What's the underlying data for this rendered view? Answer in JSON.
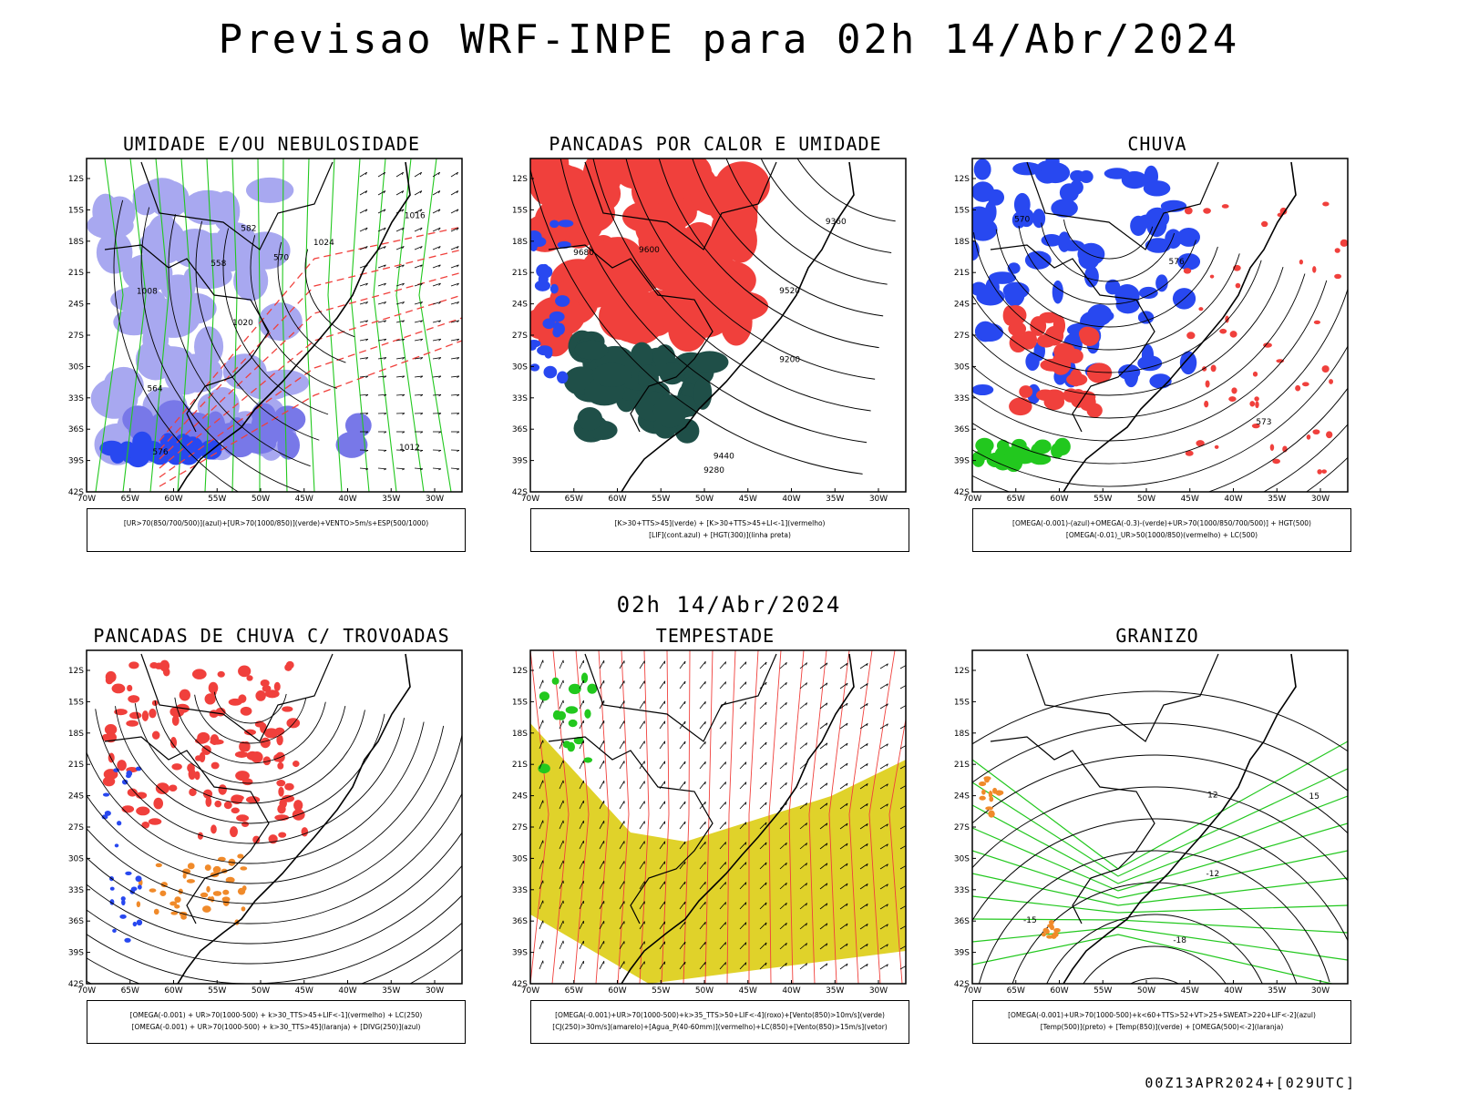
{
  "header": {
    "title": "Previsao WRF-INPE  para 02h 14/Abr/2024"
  },
  "middle": {
    "label": "02h 14/Abr/2024"
  },
  "footer": {
    "stamp": "00Z13APR2024+[029UTC]"
  },
  "axes": {
    "lat_ticks": [
      "12S",
      "15S",
      "18S",
      "21S",
      "24S",
      "27S",
      "30S",
      "33S",
      "36S",
      "39S",
      "42S"
    ],
    "lon_ticks": [
      "70W",
      "65W",
      "60W",
      "55W",
      "50W",
      "45W",
      "40W",
      "35W",
      "30W"
    ]
  },
  "panels": [
    {
      "id": "umidade",
      "title": "UMIDADE E/OU NEBULOSIDADE",
      "legend": [
        "[UR>70(850/700/500)](azul)+[UR>70(1000/850)](verde)+VENTO>5m/s+ESP(500/1000)"
      ]
    },
    {
      "id": "pancadas-calor",
      "title": "PANCADAS POR CALOR E UMIDADE",
      "legend": [
        "[K>30+TTS>45](verde) + [K>30+TTS>45+LI<-1](vermelho)",
        "[LIF](cont.azul) + [HGT(300)](linha preta)"
      ]
    },
    {
      "id": "chuva",
      "title": "CHUVA",
      "legend": [
        "[OMEGA(-0.001)-(azul)+OMEGA(-0.3)-(verde)+UR>70(1000/850/700/500)] + HGT(500)",
        "[OMEGA(-0.01)_UR>50(1000/850)(vermelho) + LC(500)"
      ]
    },
    {
      "id": "pancadas-trovoadas",
      "title": "PANCADAS DE CHUVA C/ TROVOADAS",
      "legend": [
        "[OMEGA(-0.001) + UR>70(1000-500) + k>30_TTS>45+LIF<-1](vermelho) + LC(250)",
        "[OMEGA(-0.001) + UR>70(1000-500) + k>30_TTS>45](laranja) + [DIVG(250)](azul)"
      ]
    },
    {
      "id": "tempestade",
      "title": "TEMPESTADE",
      "legend": [
        "[OMEGA(-0.001)+UR>70(1000-500)+k>35_TTS>50+LIF<-4](roxo)+[Vento(850)>10m/s](verde)",
        "[CJ(250)>30m/s](amarelo)+[Agua_P(40-60mm)](vermelho)+LC(850)+[Vento(850)>15m/s](vetor)"
      ]
    },
    {
      "id": "granizo",
      "title": "GRANIZO",
      "legend": [
        "[OMEGA(-0.001)+UR>70(1000-500)+k<60+TTS>52+VT>25+SWEAT>220+LIF<-2](azul)",
        "[Temp(500)](preto) + [Temp(850)](verde) + [OMEGA(500)<-2](laranja)"
      ]
    }
  ],
  "contour_labels": {
    "umidade": [
      "1012",
      "1008",
      "1016",
      "1020",
      "1024",
      "576",
      "582",
      "570",
      "564",
      "558"
    ],
    "pancadas-calor": [
      "9680",
      "9600",
      "9520",
      "9440",
      "9360",
      "9280",
      "9200"
    ],
    "chuva": [
      "576",
      "573",
      "570"
    ],
    "granizo": [
      "-12",
      "-15",
      "-18",
      "12",
      "15"
    ]
  },
  "colors": {
    "red": "#f0403c",
    "blue": "#2848f0",
    "green": "#22c81e",
    "lavender": "#a8a8f0",
    "darkteal": "#1f4f48",
    "yellow": "#e0d22a",
    "orange": "#f08a2a"
  }
}
